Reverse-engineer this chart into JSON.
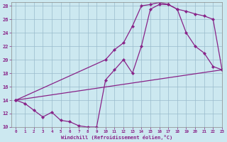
{
  "xlabel": "Windchill (Refroidissement éolien,°C)",
  "bg_color": "#cce8f0",
  "line_color": "#882288",
  "grid_color": "#99bbcc",
  "xlim": [
    -0.5,
    23
  ],
  "ylim": [
    10,
    28.5
  ],
  "yticks": [
    10,
    12,
    14,
    16,
    18,
    20,
    22,
    24,
    26,
    28
  ],
  "xticks": [
    0,
    1,
    2,
    3,
    4,
    5,
    6,
    7,
    8,
    9,
    10,
    11,
    12,
    13,
    14,
    15,
    16,
    17,
    18,
    19,
    20,
    21,
    22,
    23
  ],
  "line1_x": [
    0,
    1,
    2,
    3,
    4,
    5,
    6,
    7,
    8,
    9,
    10,
    11,
    12,
    13,
    14,
    15,
    16,
    17,
    18,
    19,
    20,
    21,
    22,
    23
  ],
  "line1_y": [
    14.0,
    13.5,
    12.5,
    11.5,
    12.2,
    11.0,
    10.8,
    10.2,
    10.0,
    10.0,
    17.0,
    18.5,
    20.0,
    18.0,
    22.0,
    27.5,
    28.2,
    28.2,
    27.5,
    24.0,
    22.0,
    21.0,
    19.0,
    18.5
  ],
  "line2_x": [
    0,
    10,
    11,
    12,
    13,
    14,
    15,
    16,
    17,
    18,
    19,
    20,
    21,
    22,
    23
  ],
  "line2_y": [
    14.0,
    20.0,
    21.5,
    22.5,
    25.0,
    28.0,
    28.2,
    28.5,
    28.2,
    27.5,
    27.2,
    26.8,
    26.5,
    26.0,
    18.5
  ],
  "line3_x": [
    0,
    23
  ],
  "line3_y": [
    14.0,
    18.5
  ]
}
